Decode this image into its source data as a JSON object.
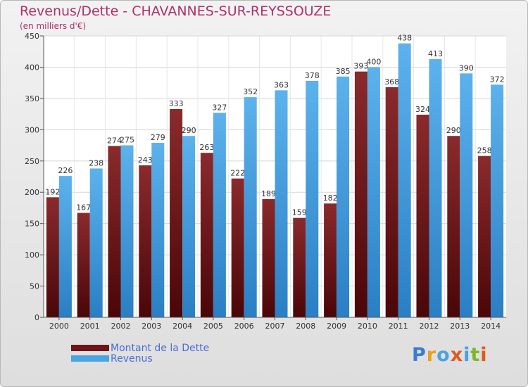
{
  "title": "Revenus/Dette - CHAVANNES-SUR-REYSSOUZE",
  "subtitle": "(en milliers d'€)",
  "legend": [
    {
      "label": "Montant de la Dette",
      "color": "#6e1416"
    },
    {
      "label": "Revenus",
      "color": "#4aa3e2"
    }
  ],
  "logo_text": "Proxiti",
  "logo_colors": [
    "#3a7bd5",
    "#e8a020",
    "#4aa3e2",
    "#e05a20",
    "#4aa3e2",
    "#7ab828",
    "#e05a20"
  ],
  "chart_data": {
    "type": "bar",
    "categories": [
      "2000",
      "2001",
      "2002",
      "2003",
      "2004",
      "2005",
      "2006",
      "2007",
      "2008",
      "2009",
      "2010",
      "2011",
      "2012",
      "2013",
      "2014"
    ],
    "series": [
      {
        "name": "Montant de la Dette",
        "color": "#6e1416",
        "values": [
          192,
          167,
          274,
          243,
          333,
          263,
          222,
          189,
          159,
          182,
          393,
          368,
          324,
          290,
          258
        ]
      },
      {
        "name": "Revenus",
        "color": "#4aa3e2",
        "values": [
          226,
          238,
          275,
          279,
          290,
          327,
          352,
          363,
          378,
          385,
          400,
          438,
          413,
          390,
          372
        ]
      }
    ],
    "ylim": [
      0,
      450
    ],
    "yticks": [
      0,
      50,
      100,
      150,
      200,
      250,
      300,
      350,
      400,
      450
    ],
    "grid": true
  }
}
